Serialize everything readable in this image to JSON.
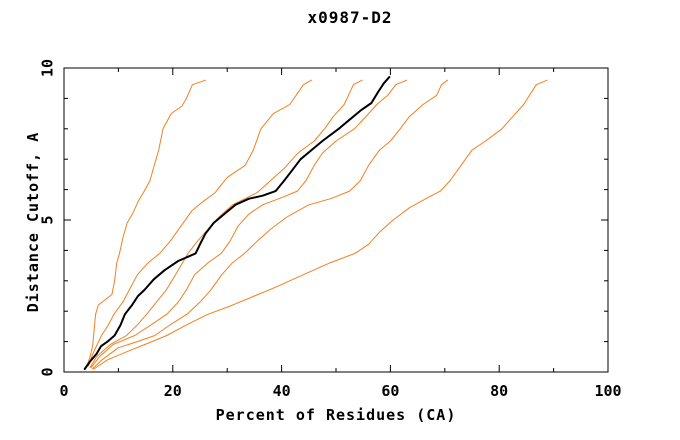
{
  "figure": {
    "title": "x0987-D2",
    "background_color": "#ffffff",
    "axis_color": "#000000"
  },
  "chart_data": {
    "type": "line",
    "title": "x0987-D2",
    "xlabel": "Percent of Residues (CA)",
    "ylabel": "Distance Cutoff, A",
    "xlim": [
      0,
      100
    ],
    "ylim": [
      0,
      10
    ],
    "x_major_ticks": [
      0,
      20,
      40,
      60,
      80,
      100
    ],
    "x_minor_ticks": [
      10,
      30,
      50,
      70,
      90
    ],
    "y_major_ticks": [
      0,
      5,
      10
    ],
    "y_minor_ticks": [
      1,
      2,
      3,
      4,
      6,
      7,
      8,
      9
    ],
    "grid": false,
    "legend_position": "none",
    "tick_style": "inward-all-four-sides",
    "colors": {
      "orange": "#f08020",
      "black": "#000000"
    },
    "series": [
      {
        "name": "orange-curve-1",
        "color": "#f08020",
        "stroke_width": 1,
        "points": [
          [
            4.2,
            0.2
          ],
          [
            4.8,
            0.5
          ],
          [
            5.3,
            0.9
          ],
          [
            5.5,
            1.3
          ],
          [
            5.8,
            1.9
          ],
          [
            6.3,
            2.2
          ],
          [
            8.8,
            2.55
          ],
          [
            9.3,
            3.0
          ],
          [
            9.7,
            3.6
          ],
          [
            10.2,
            3.9
          ],
          [
            10.8,
            4.4
          ],
          [
            11.6,
            4.9
          ],
          [
            12.6,
            5.2
          ],
          [
            13.6,
            5.6
          ],
          [
            14.6,
            5.9
          ],
          [
            15.8,
            6.3
          ],
          [
            16.6,
            6.8
          ],
          [
            17.4,
            7.3
          ],
          [
            18.2,
            8.0
          ],
          [
            19.7,
            8.5
          ],
          [
            21.7,
            8.75
          ],
          [
            22.5,
            9.0
          ],
          [
            23.6,
            9.45
          ],
          [
            26.0,
            9.6
          ]
        ]
      },
      {
        "name": "orange-curve-2",
        "color": "#f08020",
        "stroke_width": 1,
        "points": [
          [
            4.5,
            0.2
          ],
          [
            5.3,
            0.6
          ],
          [
            6.9,
            1.2
          ],
          [
            8.0,
            1.5
          ],
          [
            9.2,
            1.9
          ],
          [
            10.8,
            2.3
          ],
          [
            12.0,
            2.7
          ],
          [
            13.5,
            3.2
          ],
          [
            15.5,
            3.6
          ],
          [
            17.6,
            3.9
          ],
          [
            19.5,
            4.3
          ],
          [
            21.5,
            4.8
          ],
          [
            23.5,
            5.3
          ],
          [
            25.5,
            5.6
          ],
          [
            27.8,
            5.9
          ],
          [
            30.0,
            6.4
          ],
          [
            33.3,
            6.8
          ],
          [
            34.8,
            7.3
          ],
          [
            36.2,
            8.0
          ],
          [
            38.5,
            8.5
          ],
          [
            41.5,
            8.8
          ],
          [
            44.0,
            9.45
          ],
          [
            45.5,
            9.6
          ]
        ]
      },
      {
        "name": "orange-curve-3",
        "color": "#f08020",
        "stroke_width": 1,
        "points": [
          [
            4.8,
            0.15
          ],
          [
            6.0,
            0.5
          ],
          [
            8.5,
            0.9
          ],
          [
            11.5,
            1.2
          ],
          [
            13.5,
            1.55
          ],
          [
            15.2,
            1.9
          ],
          [
            17.0,
            2.3
          ],
          [
            18.8,
            2.7
          ],
          [
            20.5,
            3.2
          ],
          [
            22.8,
            3.9
          ],
          [
            24.5,
            4.3
          ],
          [
            26.5,
            4.7
          ],
          [
            28.5,
            5.1
          ],
          [
            31.0,
            5.5
          ],
          [
            35.5,
            5.9
          ],
          [
            38.0,
            6.3
          ],
          [
            40.5,
            6.7
          ],
          [
            43.0,
            7.2
          ],
          [
            46.0,
            7.6
          ],
          [
            47.9,
            8.0
          ],
          [
            49.5,
            8.4
          ],
          [
            51.5,
            8.8
          ],
          [
            53.2,
            9.45
          ],
          [
            54.8,
            9.6
          ]
        ]
      },
      {
        "name": "orange-curve-4",
        "color": "#f08020",
        "stroke_width": 1,
        "points": [
          [
            5.0,
            0.15
          ],
          [
            6.5,
            0.5
          ],
          [
            9.0,
            0.9
          ],
          [
            13.0,
            1.2
          ],
          [
            16.0,
            1.55
          ],
          [
            18.9,
            1.9
          ],
          [
            21.0,
            2.3
          ],
          [
            22.5,
            2.7
          ],
          [
            24.0,
            3.2
          ],
          [
            26.5,
            3.6
          ],
          [
            28.9,
            3.9
          ],
          [
            30.5,
            4.3
          ],
          [
            32.0,
            4.8
          ],
          [
            34.0,
            5.2
          ],
          [
            36.5,
            5.5
          ],
          [
            39.5,
            5.7
          ],
          [
            42.9,
            5.95
          ],
          [
            44.5,
            6.3
          ],
          [
            46.0,
            6.8
          ],
          [
            47.5,
            7.2
          ],
          [
            50.0,
            7.6
          ],
          [
            53.4,
            8.0
          ],
          [
            55.5,
            8.4
          ],
          [
            57.5,
            8.8
          ],
          [
            59.5,
            9.1
          ],
          [
            61.0,
            9.45
          ],
          [
            63.0,
            9.6
          ]
        ]
      },
      {
        "name": "orange-curve-5",
        "color": "#f08020",
        "stroke_width": 1,
        "points": [
          [
            5.2,
            0.1
          ],
          [
            7.0,
            0.4
          ],
          [
            10.0,
            0.8
          ],
          [
            13.5,
            1.0
          ],
          [
            16.7,
            1.2
          ],
          [
            19.5,
            1.55
          ],
          [
            22.6,
            1.9
          ],
          [
            25.0,
            2.3
          ],
          [
            27.0,
            2.7
          ],
          [
            29.0,
            3.2
          ],
          [
            31.0,
            3.6
          ],
          [
            33.2,
            3.9
          ],
          [
            35.5,
            4.3
          ],
          [
            38.0,
            4.7
          ],
          [
            41.0,
            5.1
          ],
          [
            45.0,
            5.5
          ],
          [
            49.0,
            5.7
          ],
          [
            52.5,
            5.95
          ],
          [
            54.5,
            6.3
          ],
          [
            56.0,
            6.8
          ],
          [
            58.0,
            7.3
          ],
          [
            60.0,
            7.6
          ],
          [
            61.8,
            8.0
          ],
          [
            63.5,
            8.4
          ],
          [
            66.0,
            8.8
          ],
          [
            68.5,
            9.1
          ],
          [
            69.4,
            9.45
          ],
          [
            70.5,
            9.6
          ]
        ]
      },
      {
        "name": "orange-curve-6",
        "color": "#f08020",
        "stroke_width": 1,
        "points": [
          [
            5.5,
            0.1
          ],
          [
            8.0,
            0.4
          ],
          [
            12.0,
            0.7
          ],
          [
            15.5,
            0.95
          ],
          [
            18.9,
            1.2
          ],
          [
            22.5,
            1.55
          ],
          [
            26.5,
            1.9
          ],
          [
            31.0,
            2.2
          ],
          [
            35.0,
            2.5
          ],
          [
            39.0,
            2.8
          ],
          [
            44.0,
            3.2
          ],
          [
            49.0,
            3.6
          ],
          [
            53.5,
            3.9
          ],
          [
            56.0,
            4.2
          ],
          [
            58.0,
            4.6
          ],
          [
            60.5,
            5.0
          ],
          [
            63.5,
            5.4
          ],
          [
            66.5,
            5.7
          ],
          [
            69.2,
            5.95
          ],
          [
            71.0,
            6.3
          ],
          [
            73.0,
            6.8
          ],
          [
            75.0,
            7.3
          ],
          [
            77.5,
            7.6
          ],
          [
            80.5,
            8.0
          ],
          [
            82.5,
            8.4
          ],
          [
            84.5,
            8.8
          ],
          [
            86.8,
            9.45
          ],
          [
            88.8,
            9.6
          ]
        ]
      },
      {
        "name": "black-curve",
        "color": "#000000",
        "stroke_width": 2,
        "points": [
          [
            3.8,
            0.1
          ],
          [
            4.8,
            0.35
          ],
          [
            6.0,
            0.6
          ],
          [
            6.8,
            0.85
          ],
          [
            8.0,
            1.0
          ],
          [
            9.3,
            1.2
          ],
          [
            10.4,
            1.55
          ],
          [
            11.2,
            1.9
          ],
          [
            12.5,
            2.2
          ],
          [
            13.6,
            2.5
          ],
          [
            14.8,
            2.7
          ],
          [
            16.5,
            3.05
          ],
          [
            18.5,
            3.35
          ],
          [
            21.0,
            3.65
          ],
          [
            24.2,
            3.9
          ],
          [
            25.0,
            4.2
          ],
          [
            26.0,
            4.55
          ],
          [
            27.5,
            4.9
          ],
          [
            29.5,
            5.2
          ],
          [
            31.5,
            5.5
          ],
          [
            34.0,
            5.7
          ],
          [
            36.5,
            5.8
          ],
          [
            38.9,
            5.95
          ],
          [
            40.5,
            6.3
          ],
          [
            42.0,
            6.65
          ],
          [
            43.5,
            7.0
          ],
          [
            45.5,
            7.3
          ],
          [
            47.5,
            7.6
          ],
          [
            50.5,
            8.0
          ],
          [
            52.5,
            8.3
          ],
          [
            54.5,
            8.6
          ],
          [
            56.5,
            8.85
          ],
          [
            57.7,
            9.2
          ],
          [
            58.8,
            9.5
          ],
          [
            59.8,
            9.7
          ]
        ]
      }
    ]
  }
}
